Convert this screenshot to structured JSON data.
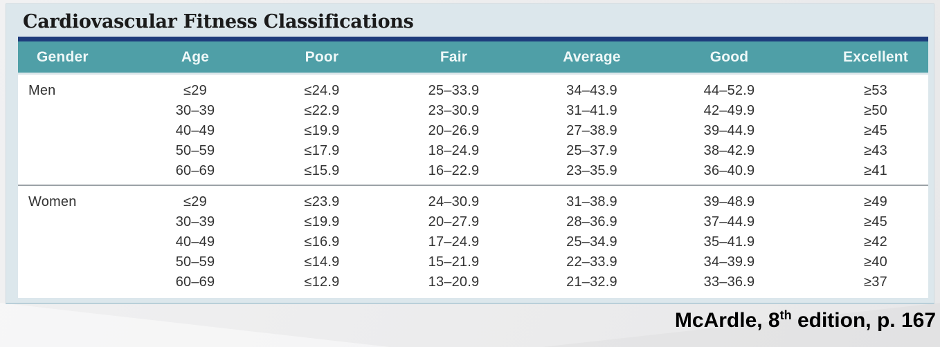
{
  "title": "Cardiovascular Fitness Classifications",
  "table": {
    "columns": [
      "Gender",
      "Age",
      "Poor",
      "Fair",
      "Average",
      "Good",
      "Excellent"
    ],
    "groups": [
      {
        "gender": "Men",
        "rows": [
          {
            "age": "≤29",
            "poor": "≤24.9",
            "fair": "25–33.9",
            "average": "34–43.9",
            "good": "44–52.9",
            "excellent": "≥53"
          },
          {
            "age": "30–39",
            "poor": "≤22.9",
            "fair": "23–30.9",
            "average": "31–41.9",
            "good": "42–49.9",
            "excellent": "≥50"
          },
          {
            "age": "40–49",
            "poor": "≤19.9",
            "fair": "20–26.9",
            "average": "27–38.9",
            "good": "39–44.9",
            "excellent": "≥45"
          },
          {
            "age": "50–59",
            "poor": "≤17.9",
            "fair": "18–24.9",
            "average": "25–37.9",
            "good": "38–42.9",
            "excellent": "≥43"
          },
          {
            "age": "60–69",
            "poor": "≤15.9",
            "fair": "16–22.9",
            "average": "23–35.9",
            "good": "36–40.9",
            "excellent": "≥41"
          }
        ]
      },
      {
        "gender": "Women",
        "rows": [
          {
            "age": "≤29",
            "poor": "≤23.9",
            "fair": "24–30.9",
            "average": "31–38.9",
            "good": "39–48.9",
            "excellent": "≥49"
          },
          {
            "age": "30–39",
            "poor": "≤19.9",
            "fair": "20–27.9",
            "average": "28–36.9",
            "good": "37–44.9",
            "excellent": "≥45"
          },
          {
            "age": "40–49",
            "poor": "≤16.9",
            "fair": "17–24.9",
            "average": "25–34.9",
            "good": "35–41.9",
            "excellent": "≥42"
          },
          {
            "age": "50–59",
            "poor": "≤14.9",
            "fair": "15–21.9",
            "average": "22–33.9",
            "good": "34–39.9",
            "excellent": "≥40"
          },
          {
            "age": "60–69",
            "poor": "≤12.9",
            "fair": "13–20.9",
            "average": "21–32.9",
            "good": "33–36.9",
            "excellent": "≥37"
          }
        ]
      }
    ]
  },
  "citation": {
    "before_sup": "McArdle, 8",
    "sup": "th",
    "after_sup": " edition, p. 167"
  },
  "colors": {
    "header_bg": "#4f9fa7",
    "header_top_bar": "#1e3c7c",
    "header_text": "#eff8f8",
    "figure_bg": "#dce7ec",
    "body_text": "#333333",
    "section_separator": "#9ba2a6",
    "citation_text": "#000000"
  }
}
